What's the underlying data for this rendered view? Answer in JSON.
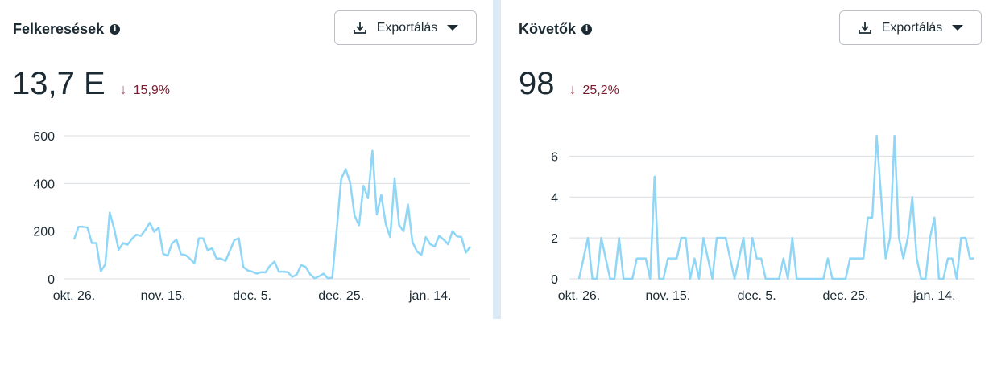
{
  "panels": [
    {
      "title": "Felkeresések",
      "export_label": "Exportálás",
      "value": "13,7 E",
      "delta": "15,9%",
      "delta_direction": "down"
    },
    {
      "title": "Követők",
      "export_label": "Exportálás",
      "value": "98",
      "delta": "25,2%",
      "delta_direction": "down"
    }
  ],
  "colors": {
    "line": "#8fd6f7",
    "grid": "#dadde1",
    "divider": "#dbeaf5",
    "delta": "#7a1c2e"
  },
  "chart_data": [
    {
      "type": "line",
      "title": "Felkeresések",
      "xlabel": "",
      "ylabel": "",
      "ylim": [
        0,
        600
      ],
      "yticks": [
        0,
        200,
        400,
        600
      ],
      "xticks": [
        {
          "index": 0,
          "label": "okt. 26."
        },
        {
          "index": 20,
          "label": "nov. 15."
        },
        {
          "index": 40,
          "label": "dec. 5."
        },
        {
          "index": 60,
          "label": "dec. 25."
        },
        {
          "index": 80,
          "label": "jan. 14."
        }
      ],
      "grid": true,
      "values": [
        165,
        218,
        218,
        215,
        150,
        150,
        32,
        60,
        278,
        210,
        122,
        150,
        143,
        168,
        185,
        180,
        205,
        235,
        197,
        215,
        105,
        97,
        148,
        165,
        103,
        100,
        85,
        65,
        170,
        170,
        120,
        128,
        85,
        85,
        75,
        118,
        162,
        170,
        50,
        35,
        30,
        22,
        28,
        27,
        55,
        72,
        30,
        30,
        28,
        8,
        18,
        58,
        50,
        20,
        2,
        10,
        22,
        2,
        5,
        210,
        420,
        460,
        405,
        265,
        225,
        390,
        338,
        537,
        270,
        352,
        230,
        175,
        422,
        225,
        200,
        312,
        155,
        115,
        100,
        175,
        145,
        135,
        180,
        165,
        145,
        200,
        178,
        175,
        110,
        135
      ]
    },
    {
      "type": "line",
      "title": "Követők",
      "xlabel": "",
      "ylabel": "",
      "ylim": [
        0,
        7
      ],
      "yticks": [
        0,
        2,
        4,
        6
      ],
      "xticks": [
        {
          "index": 0,
          "label": "okt. 26."
        },
        {
          "index": 20,
          "label": "nov. 15."
        },
        {
          "index": 40,
          "label": "dec. 5."
        },
        {
          "index": 60,
          "label": "dec. 25."
        },
        {
          "index": 80,
          "label": "jan. 14."
        }
      ],
      "grid": true,
      "values": [
        0,
        1,
        2,
        0,
        0,
        2,
        1,
        0,
        0,
        2,
        0,
        0,
        0,
        1,
        1,
        1,
        0,
        5,
        0,
        0,
        1,
        1,
        1,
        2,
        2,
        0,
        1,
        0,
        2,
        1,
        0,
        2,
        2,
        2,
        1,
        0,
        1,
        2,
        0,
        2,
        1,
        1,
        0,
        0,
        0,
        0,
        1,
        0,
        2,
        0,
        0,
        0,
        0,
        0,
        0,
        0,
        1,
        0,
        0,
        0,
        0,
        1,
        1,
        1,
        1,
        3,
        3,
        7,
        4,
        1,
        2,
        7,
        2,
        1,
        2,
        4,
        1,
        0,
        0,
        2,
        3,
        0,
        0,
        1,
        1,
        0,
        2,
        2,
        1,
        1
      ]
    }
  ]
}
